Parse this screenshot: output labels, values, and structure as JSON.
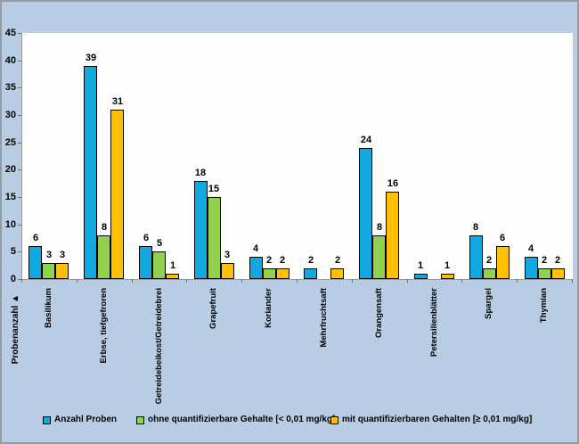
{
  "chart_data": {
    "type": "bar",
    "title": "",
    "categories": [
      "Basilikum",
      "Erbse, tiefgefroren",
      "Getreidebeikost/Getreidebrei",
      "Grapefruit",
      "Koriander",
      "Mehrfruchtsaft",
      "Orangensaft",
      "Petersilienblätter",
      "Spargel",
      "Thymian"
    ],
    "series": [
      {
        "name": "Anzahl Proben",
        "color": "#0FA8E1",
        "values": [
          6,
          39,
          6,
          18,
          4,
          2,
          24,
          1,
          8,
          4
        ]
      },
      {
        "name": "ohne quantifizierbare Gehalte [< 0,01 mg/kg]",
        "color": "#92D050",
        "values": [
          3,
          8,
          5,
          15,
          2,
          0,
          8,
          0,
          2,
          2
        ]
      },
      {
        "name": "mit quantifizierbaren Gehalten [≥ 0,01 mg/kg]",
        "color": "#FFC000",
        "values": [
          3,
          31,
          1,
          3,
          2,
          2,
          16,
          1,
          6,
          2
        ]
      }
    ],
    "ylabel": "Probenanzahl",
    "ylabel_arrow": "▲",
    "xlabel": "",
    "ylim": [
      0,
      45
    ],
    "y_ticks": [
      0,
      5,
      10,
      15,
      20,
      25,
      30,
      35,
      40,
      45
    ],
    "grid": false,
    "bar_value_labels": true,
    "zero_bars_hidden": true,
    "legend_position": "bottom"
  },
  "colors": {
    "background": "#B8CCE4",
    "plot_background": "#FEFEFE",
    "frame_border": "#939BA4",
    "axis_line": "#9A9A9A",
    "tick": "#6F6F6F",
    "text": "#000000",
    "bar_border": "#000000"
  }
}
